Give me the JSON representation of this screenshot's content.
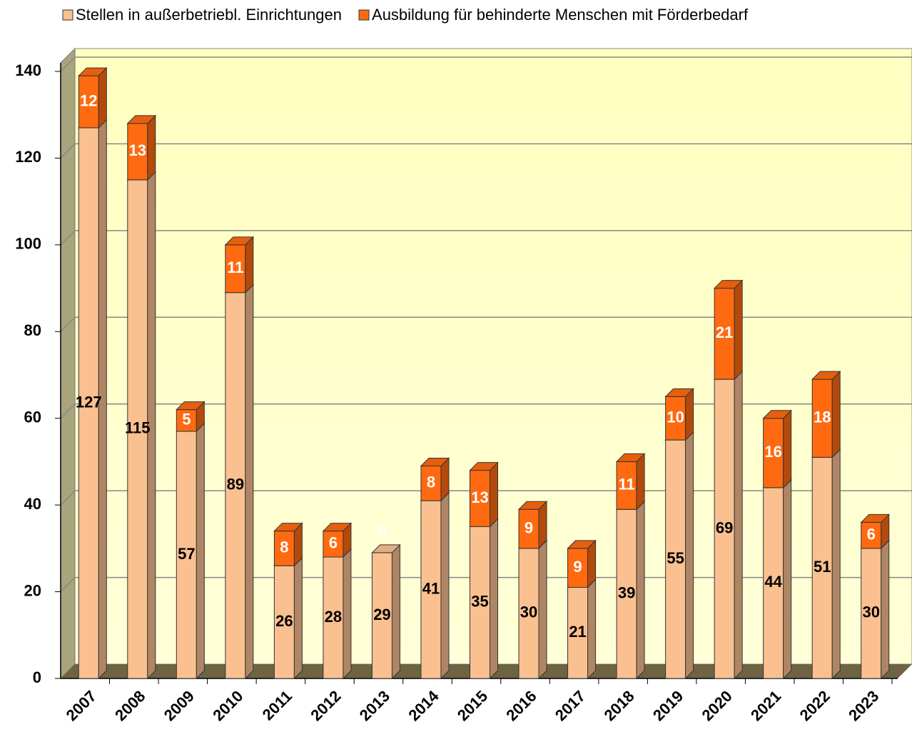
{
  "chart_data": {
    "type": "bar3d_stacked",
    "categories": [
      "2007",
      "2008",
      "2009",
      "2010",
      "2011",
      "2012",
      "2013",
      "2014",
      "2015",
      "2016",
      "2017",
      "2018",
      "2019",
      "2020",
      "2021",
      "2022",
      "2023"
    ],
    "series": [
      {
        "name": "Stellen in außerbetriebl. Einrichtungen",
        "color": "#fac090",
        "values": [
          127,
          115,
          57,
          89,
          26,
          28,
          29,
          41,
          35,
          30,
          21,
          39,
          55,
          69,
          44,
          51,
          30
        ]
      },
      {
        "name": "Ausbildung für behinderte Menschen mit Förderbedarf",
        "color": "#ff6a10",
        "values": [
          12,
          13,
          5,
          11,
          8,
          6,
          0,
          8,
          13,
          9,
          9,
          11,
          10,
          21,
          16,
          18,
          6
        ]
      }
    ],
    "ylim": [
      0,
      140
    ],
    "yticks": [
      0,
      20,
      40,
      60,
      80,
      100,
      120,
      140
    ],
    "grid": true,
    "legend": "top"
  }
}
